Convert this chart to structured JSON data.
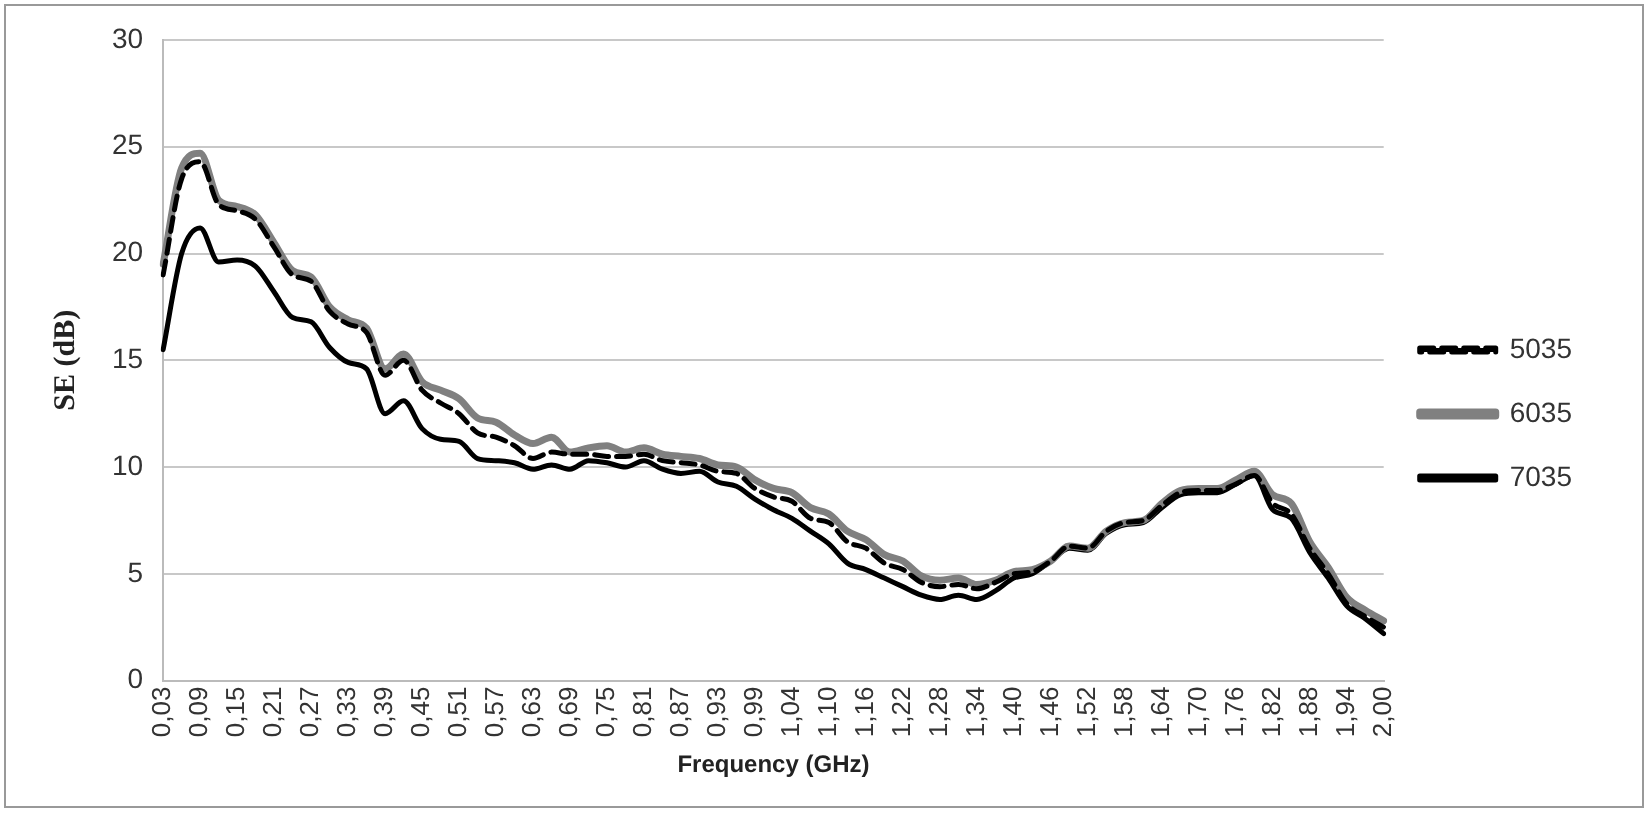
{
  "chart_data": {
    "type": "line",
    "xlabel": "Frequency (GHz)",
    "ylabel": "SE (dB)",
    "categories": [
      "0,03",
      null,
      "0,09",
      null,
      "0,15",
      null,
      "0,21",
      null,
      "0,27",
      null,
      "0,33",
      null,
      "0,39",
      null,
      "0,45",
      null,
      "0,51",
      null,
      "0,57",
      null,
      "0,63",
      null,
      "0,69",
      null,
      "0,75",
      null,
      "0,81",
      null,
      "0,87",
      null,
      "0,93",
      null,
      "0,99",
      null,
      "1,04",
      null,
      "1,10",
      null,
      "1,16",
      null,
      "1,22",
      null,
      "1,28",
      null,
      "1,34",
      null,
      "1,40",
      null,
      "1,46",
      null,
      "1,52",
      null,
      "1,58",
      null,
      "1,64",
      null,
      "1,70",
      null,
      "1,76",
      null,
      "1,82",
      null,
      "1,88",
      null,
      "1,94",
      null,
      "2,00"
    ],
    "series": [
      {
        "name": "5035",
        "color": "#000000",
        "line_style": "dashed",
        "values": [
          19,
          23.5,
          24.3,
          22.3,
          22,
          21.6,
          20.3,
          19,
          18.7,
          17.3,
          16.7,
          16.3,
          14.3,
          15,
          13.6,
          13,
          12.5,
          11.6,
          11.4,
          11,
          10.4,
          10.7,
          10.6,
          10.6,
          10.5,
          10.5,
          10.6,
          10.3,
          10.2,
          10.1,
          9.8,
          9.7,
          9,
          8.6,
          8.4,
          7.6,
          7.4,
          6.5,
          6.2,
          5.5,
          5.2,
          4.6,
          4.4,
          4.5,
          4.3,
          4.6,
          5,
          5.1,
          5.6,
          6.3,
          6.2,
          7,
          7.4,
          7.5,
          8.2,
          8.8,
          8.9,
          8.9,
          9.2,
          9.6,
          8.3,
          7.8,
          6.2,
          5,
          3.6,
          3,
          2.5
        ]
      },
      {
        "name": "6035",
        "color": "#808080",
        "line_style": "solid",
        "values": [
          19.5,
          24,
          24.7,
          22.5,
          22.2,
          21.8,
          20.5,
          19.2,
          18.9,
          17.5,
          16.9,
          16.5,
          14.6,
          15.3,
          14,
          13.6,
          13.2,
          12.3,
          12.1,
          11.5,
          11.1,
          11.4,
          10.7,
          10.9,
          11,
          10.7,
          10.9,
          10.6,
          10.5,
          10.4,
          10.1,
          10,
          9.4,
          9,
          8.8,
          8.1,
          7.8,
          7,
          6.6,
          5.9,
          5.6,
          4.9,
          4.7,
          4.8,
          4.5,
          4.7,
          5.1,
          5.2,
          5.6,
          6.3,
          6.2,
          7,
          7.4,
          7.5,
          8.3,
          8.9,
          9,
          9,
          9.4,
          9.8,
          8.7,
          8.3,
          6.5,
          5.3,
          3.9,
          3.3,
          2.8
        ]
      },
      {
        "name": "7035",
        "color": "#000000",
        "line_style": "solid",
        "values": [
          15.5,
          20,
          21.2,
          19.6,
          19.7,
          19.4,
          18.2,
          17,
          16.8,
          15.6,
          14.9,
          14.6,
          12.5,
          13.1,
          11.8,
          11.3,
          11.2,
          10.4,
          10.3,
          10.2,
          9.9,
          10.1,
          9.9,
          10.3,
          10.2,
          10,
          10.3,
          9.9,
          9.7,
          9.8,
          9.3,
          9.1,
          8.5,
          8,
          7.6,
          7,
          6.4,
          5.5,
          5.2,
          4.8,
          4.4,
          4,
          3.8,
          4,
          3.8,
          4.2,
          4.8,
          5,
          5.6,
          6.2,
          6.1,
          6.9,
          7.3,
          7.4,
          8.1,
          8.7,
          8.8,
          8.8,
          9.2,
          9.6,
          8,
          7.6,
          6,
          4.8,
          3.5,
          2.9,
          2.2
        ]
      }
    ],
    "ylim": [
      0,
      30
    ],
    "yticks": [
      0,
      5,
      10,
      15,
      20,
      25,
      30
    ],
    "grid": "y",
    "legend": "right",
    "marker": "none"
  }
}
